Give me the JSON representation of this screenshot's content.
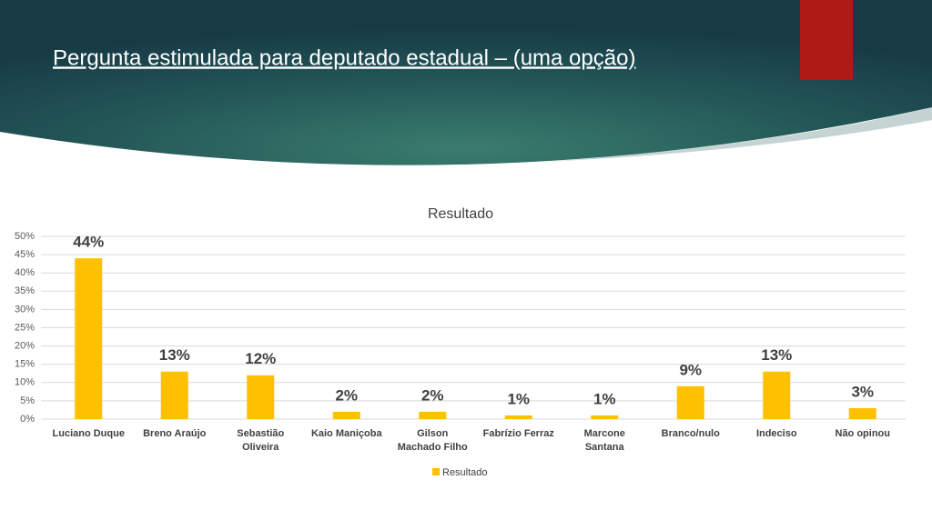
{
  "header": {
    "title": "Pergunta estimulada para deputado estadual – (uma opção)"
  },
  "chart_data": {
    "type": "bar",
    "title": "Resultado",
    "categories": [
      "Luciano Duque",
      "Breno Araújo",
      "Sebastião\nOliveira",
      "Kaio Maniçoba",
      "Gilson\nMachado Filho",
      "Fabrízio Ferraz",
      "Marcone\nSantana",
      "Branco/nulo",
      "Indeciso",
      "Não opinou"
    ],
    "series": [
      {
        "name": "Resultado",
        "color": "#ffc000",
        "values": [
          44,
          13,
          12,
          2,
          2,
          1,
          1,
          9,
          13,
          3
        ],
        "value_labels": [
          "44%",
          "13%",
          "12%",
          "2%",
          "2%",
          "1%",
          "1%",
          "9%",
          "13%",
          "3%"
        ]
      }
    ],
    "ylim": [
      0,
      50
    ],
    "yticks": [
      {
        "value": 0,
        "label": "0%"
      },
      {
        "value": 5,
        "label": "5%"
      },
      {
        "value": 10,
        "label": "10%"
      },
      {
        "value": 15,
        "label": "15%"
      },
      {
        "value": 20,
        "label": "20%"
      },
      {
        "value": 25,
        "label": "25%"
      },
      {
        "value": 30,
        "label": "30%"
      },
      {
        "value": 35,
        "label": "35%"
      },
      {
        "value": 40,
        "label": "40%"
      },
      {
        "value": 45,
        "label": "45%"
      },
      {
        "value": 50,
        "label": "50%"
      }
    ],
    "grid": true
  }
}
